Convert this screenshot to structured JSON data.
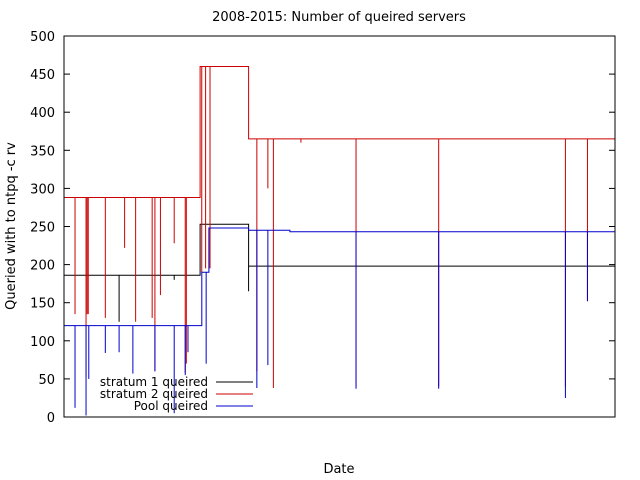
{
  "chart_data": {
    "type": "line",
    "title": "2008-2015: Number of queired servers",
    "xlabel": "Date",
    "ylabel": "Queried with to ntpq -c rv",
    "ylim": [
      0,
      500
    ],
    "yticks": [
      0,
      50,
      100,
      150,
      200,
      250,
      300,
      350,
      400,
      450,
      500
    ],
    "xticks": [],
    "grid": false,
    "legend_position": "bottom-left",
    "series": [
      {
        "name": "stratum 1 queired",
        "color": "#000000",
        "steps": [
          {
            "value": 186,
            "start": 0.0,
            "end": 0.247
          },
          {
            "value": 253,
            "start": 0.247,
            "end": 0.335
          },
          {
            "value": 198,
            "start": 0.335,
            "end": 1.0
          }
        ],
        "dips": [
          {
            "at": 0.1,
            "value": 125
          },
          {
            "at": 0.2,
            "value": 180
          },
          {
            "at": 0.335,
            "value": 165
          }
        ]
      },
      {
        "name": "stratum 2 queired",
        "color": "#cc0000",
        "steps": [
          {
            "value": 288,
            "start": 0.0,
            "end": 0.247
          },
          {
            "value": 460,
            "start": 0.247,
            "end": 0.335
          },
          {
            "value": 365,
            "start": 0.335,
            "end": 1.0
          }
        ],
        "dips": [
          {
            "at": 0.02,
            "value": 135
          },
          {
            "at": 0.04,
            "value": 52
          },
          {
            "at": 0.042,
            "value": 135
          },
          {
            "at": 0.044,
            "value": 135
          },
          {
            "at": 0.075,
            "value": 130
          },
          {
            "at": 0.11,
            "value": 222
          },
          {
            "at": 0.13,
            "value": 125
          },
          {
            "at": 0.16,
            "value": 130
          },
          {
            "at": 0.165,
            "value": 60
          },
          {
            "at": 0.175,
            "value": 160
          },
          {
            "at": 0.2,
            "value": 228
          },
          {
            "at": 0.22,
            "value": 58
          },
          {
            "at": 0.222,
            "value": 70
          },
          {
            "at": 0.25,
            "value": 190
          },
          {
            "at": 0.257,
            "value": 195
          },
          {
            "at": 0.265,
            "value": 195
          },
          {
            "at": 0.35,
            "value": 60
          },
          {
            "at": 0.37,
            "value": 300
          },
          {
            "at": 0.38,
            "value": 38
          },
          {
            "at": 0.43,
            "value": 360
          },
          {
            "at": 0.53,
            "value": 40
          },
          {
            "at": 0.68,
            "value": 40
          },
          {
            "at": 0.91,
            "value": 40
          },
          {
            "at": 0.95,
            "value": 152
          }
        ]
      },
      {
        "name": "Pool queired",
        "color": "#0000cc",
        "steps": [
          {
            "value": 120,
            "start": 0.0,
            "end": 0.25
          },
          {
            "value": 190,
            "start": 0.25,
            "end": 0.263
          },
          {
            "value": 248,
            "start": 0.263,
            "end": 0.335
          },
          {
            "value": 245,
            "start": 0.335,
            "end": 0.41
          },
          {
            "value": 243,
            "start": 0.41,
            "end": 1.0
          }
        ],
        "dips": [
          {
            "at": 0.02,
            "value": 12
          },
          {
            "at": 0.04,
            "value": 2
          },
          {
            "at": 0.045,
            "value": 50
          },
          {
            "at": 0.075,
            "value": 84
          },
          {
            "at": 0.1,
            "value": 85
          },
          {
            "at": 0.125,
            "value": 57
          },
          {
            "at": 0.165,
            "value": 60
          },
          {
            "at": 0.2,
            "value": 5
          },
          {
            "at": 0.22,
            "value": 55
          },
          {
            "at": 0.225,
            "value": 85
          },
          {
            "at": 0.258,
            "value": 70
          },
          {
            "at": 0.35,
            "value": 38
          },
          {
            "at": 0.37,
            "value": 68
          },
          {
            "at": 0.53,
            "value": 37
          },
          {
            "at": 0.68,
            "value": 37
          },
          {
            "at": 0.91,
            "value": 25
          },
          {
            "at": 0.95,
            "value": 152
          }
        ]
      }
    ]
  }
}
